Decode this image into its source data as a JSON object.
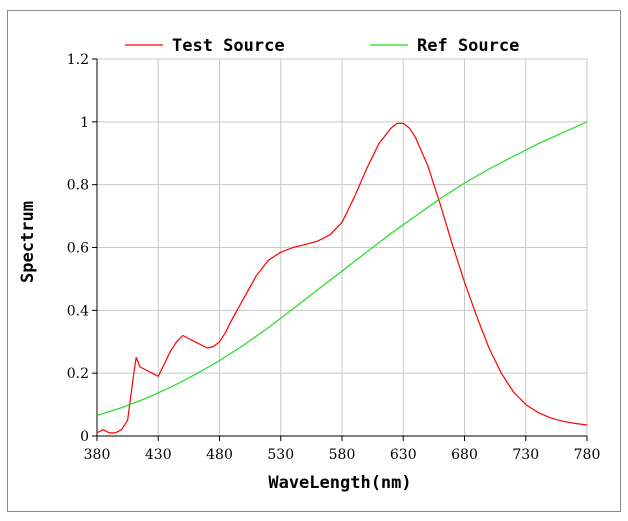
{
  "chart_data": {
    "type": "line",
    "title": "",
    "xlabel": "WaveLength(nm)",
    "ylabel": "Spectrum",
    "xlim": [
      380,
      780
    ],
    "ylim": [
      0,
      1.2
    ],
    "x_ticks": [
      "380",
      "430",
      "480",
      "530",
      "580",
      "630",
      "680",
      "730",
      "780"
    ],
    "y_ticks": [
      "0",
      "0.2",
      "0.4",
      "0.6",
      "0.8",
      "1",
      "1.2"
    ],
    "grid": true,
    "legend_position": "top",
    "series": [
      {
        "name": "Test Source",
        "color": "#ff0000",
        "x": [
          380,
          385,
          390,
          395,
          400,
          405,
          410,
          412,
          415,
          420,
          425,
          430,
          435,
          440,
          445,
          450,
          455,
          460,
          465,
          470,
          475,
          480,
          485,
          490,
          500,
          510,
          520,
          530,
          540,
          550,
          560,
          570,
          580,
          590,
          600,
          610,
          620,
          625,
          630,
          635,
          640,
          650,
          660,
          670,
          680,
          690,
          700,
          710,
          720,
          730,
          740,
          750,
          760,
          770,
          780
        ],
        "values": [
          0.01,
          0.02,
          0.01,
          0.01,
          0.02,
          0.05,
          0.2,
          0.25,
          0.22,
          0.21,
          0.2,
          0.19,
          0.23,
          0.27,
          0.3,
          0.32,
          0.31,
          0.3,
          0.29,
          0.28,
          0.285,
          0.3,
          0.33,
          0.37,
          0.44,
          0.51,
          0.56,
          0.585,
          0.6,
          0.61,
          0.62,
          0.64,
          0.68,
          0.76,
          0.85,
          0.93,
          0.98,
          0.995,
          0.995,
          0.98,
          0.95,
          0.86,
          0.74,
          0.61,
          0.49,
          0.38,
          0.28,
          0.2,
          0.14,
          0.1,
          0.075,
          0.058,
          0.047,
          0.04,
          0.035
        ]
      },
      {
        "name": "Ref Source",
        "color": "#22dd22",
        "x": [
          380,
          400,
          420,
          440,
          460,
          480,
          500,
          520,
          540,
          560,
          580,
          600,
          620,
          640,
          660,
          680,
          700,
          720,
          740,
          760,
          780
        ],
        "values": [
          0.065,
          0.09,
          0.12,
          0.155,
          0.195,
          0.24,
          0.29,
          0.345,
          0.405,
          0.465,
          0.525,
          0.585,
          0.645,
          0.7,
          0.755,
          0.805,
          0.85,
          0.89,
          0.93,
          0.965,
          1.0
        ]
      }
    ]
  }
}
